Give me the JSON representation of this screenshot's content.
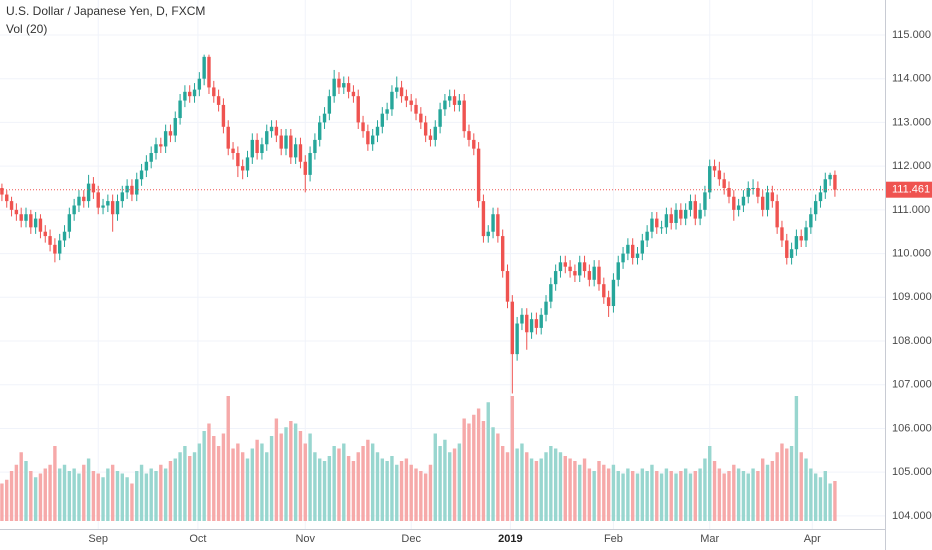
{
  "chart_data": {
    "type": "candlestick",
    "title": "U.S. Dollar / Japanese Yen, D, FXCM",
    "volume_title": "Vol (20)",
    "up_color": "#26a69a",
    "down_color": "#ef5350",
    "volume_up_color": "#98d6cf",
    "volume_down_color": "#f6a9a9",
    "grid": true,
    "ylim": [
      103.7,
      115.8
    ],
    "yticks": [
      {
        "value": 104,
        "label": "104.000"
      },
      {
        "value": 105,
        "label": "105.000"
      },
      {
        "value": 106,
        "label": "106.000"
      },
      {
        "value": 107,
        "label": "107.000"
      },
      {
        "value": 108,
        "label": "108.000"
      },
      {
        "value": 109,
        "label": "109.000"
      },
      {
        "value": 110,
        "label": "110.000"
      },
      {
        "value": 111,
        "label": "111.000"
      },
      {
        "value": 112,
        "label": "112.000"
      },
      {
        "value": 113,
        "label": "113.000"
      },
      {
        "value": 114,
        "label": "114.000"
      },
      {
        "value": 115,
        "label": "115.000"
      }
    ],
    "xlim": [
      -0.4,
      183.4
    ],
    "xticks": [
      {
        "value": 20,
        "label": "Sep"
      },
      {
        "value": 40.7,
        "label": "Oct"
      },
      {
        "value": 63,
        "label": "Nov"
      },
      {
        "value": 85,
        "label": "Dec"
      },
      {
        "value": 105.6,
        "label": "2019"
      },
      {
        "value": 127,
        "label": "Feb"
      },
      {
        "value": 147,
        "label": "Mar"
      },
      {
        "value": 168.3,
        "label": "Apr"
      }
    ],
    "volume_lim": [
      0,
      100
    ],
    "last_price_label": "111.461",
    "candles": [
      [
        111.5,
        111.6,
        111.2,
        111.35
      ],
      [
        111.35,
        111.45,
        111.05,
        111.2
      ],
      [
        111.2,
        111.3,
        110.85,
        111.0
      ],
      [
        111.0,
        111.15,
        110.75,
        110.9
      ],
      [
        110.9,
        111.05,
        110.6,
        110.75
      ],
      [
        110.75,
        111.05,
        110.6,
        110.9
      ],
      [
        110.9,
        111.0,
        110.45,
        110.6
      ],
      [
        110.6,
        110.95,
        110.45,
        110.8
      ],
      [
        110.8,
        110.9,
        110.35,
        110.5
      ],
      [
        110.5,
        110.65,
        110.25,
        110.4
      ],
      [
        110.4,
        110.55,
        110.05,
        110.2
      ],
      [
        110.2,
        110.35,
        109.8,
        110.0
      ],
      [
        110.0,
        110.45,
        109.85,
        110.3
      ],
      [
        110.3,
        110.65,
        110.15,
        110.5
      ],
      [
        110.5,
        111.05,
        110.35,
        110.9
      ],
      [
        110.9,
        111.25,
        110.75,
        111.1
      ],
      [
        111.1,
        111.45,
        110.95,
        111.3
      ],
      [
        111.3,
        111.45,
        111.05,
        111.2
      ],
      [
        111.2,
        111.8,
        111.05,
        111.6
      ],
      [
        111.6,
        111.75,
        111.25,
        111.4
      ],
      [
        111.4,
        111.55,
        110.9,
        111.05
      ],
      [
        111.05,
        111.25,
        110.9,
        111.1
      ],
      [
        111.1,
        111.35,
        110.95,
        111.2
      ],
      [
        111.2,
        111.35,
        110.5,
        110.9
      ],
      [
        110.9,
        111.35,
        110.75,
        111.2
      ],
      [
        111.2,
        111.55,
        111.05,
        111.4
      ],
      [
        111.4,
        111.7,
        111.25,
        111.55
      ],
      [
        111.55,
        111.7,
        111.2,
        111.35
      ],
      [
        111.35,
        111.85,
        111.2,
        111.7
      ],
      [
        111.7,
        112.05,
        111.55,
        111.9
      ],
      [
        111.9,
        112.25,
        111.75,
        112.1
      ],
      [
        112.1,
        112.45,
        111.95,
        112.3
      ],
      [
        112.3,
        112.65,
        112.15,
        112.5
      ],
      [
        112.5,
        112.65,
        112.3,
        112.45
      ],
      [
        112.45,
        112.95,
        112.3,
        112.8
      ],
      [
        112.8,
        112.95,
        112.55,
        112.7
      ],
      [
        112.7,
        113.25,
        112.55,
        113.1
      ],
      [
        113.1,
        113.65,
        112.95,
        113.5
      ],
      [
        113.5,
        113.85,
        113.35,
        113.7
      ],
      [
        113.7,
        113.85,
        113.45,
        113.6
      ],
      [
        113.6,
        113.9,
        113.45,
        113.75
      ],
      [
        113.75,
        114.15,
        113.6,
        114.0
      ],
      [
        114.0,
        114.55,
        113.85,
        114.5
      ],
      [
        114.5,
        114.55,
        113.65,
        113.8
      ],
      [
        113.8,
        113.95,
        113.45,
        113.6
      ],
      [
        113.6,
        113.75,
        113.25,
        113.4
      ],
      [
        113.4,
        113.55,
        112.75,
        112.9
      ],
      [
        112.9,
        113.05,
        112.25,
        112.4
      ],
      [
        112.4,
        112.55,
        112.15,
        112.3
      ],
      [
        112.3,
        112.45,
        111.75,
        112.0
      ],
      [
        112.0,
        112.15,
        111.7,
        111.9
      ],
      [
        111.9,
        112.35,
        111.75,
        112.2
      ],
      [
        112.2,
        112.75,
        112.05,
        112.6
      ],
      [
        112.6,
        112.75,
        112.15,
        112.3
      ],
      [
        112.3,
        112.65,
        112.15,
        112.5
      ],
      [
        112.5,
        112.95,
        112.35,
        112.8
      ],
      [
        112.8,
        113.05,
        112.65,
        112.9
      ],
      [
        112.9,
        113.05,
        112.55,
        112.7
      ],
      [
        112.7,
        112.85,
        112.25,
        112.4
      ],
      [
        112.4,
        112.85,
        112.25,
        112.7
      ],
      [
        112.7,
        112.85,
        112.05,
        112.2
      ],
      [
        112.2,
        112.65,
        112.05,
        112.5
      ],
      [
        112.5,
        112.65,
        111.95,
        112.1
      ],
      [
        112.1,
        112.25,
        111.4,
        111.8
      ],
      [
        111.8,
        112.45,
        111.65,
        112.3
      ],
      [
        112.3,
        112.75,
        112.15,
        112.6
      ],
      [
        112.6,
        113.15,
        112.45,
        113.0
      ],
      [
        113.0,
        113.35,
        112.85,
        113.2
      ],
      [
        113.2,
        113.75,
        113.05,
        113.6
      ],
      [
        113.6,
        114.2,
        113.45,
        114.0
      ],
      [
        114.0,
        114.15,
        113.65,
        113.8
      ],
      [
        113.8,
        114.05,
        113.65,
        113.9
      ],
      [
        113.9,
        114.05,
        113.55,
        113.7
      ],
      [
        113.7,
        113.85,
        113.45,
        113.6
      ],
      [
        113.6,
        113.75,
        112.85,
        113.0
      ],
      [
        113.0,
        113.15,
        112.65,
        112.8
      ],
      [
        112.8,
        112.95,
        112.35,
        112.5
      ],
      [
        112.5,
        112.85,
        112.35,
        112.7
      ],
      [
        112.7,
        113.05,
        112.55,
        112.9
      ],
      [
        112.9,
        113.35,
        112.75,
        113.2
      ],
      [
        113.2,
        113.45,
        113.05,
        113.3
      ],
      [
        113.3,
        113.85,
        113.15,
        113.7
      ],
      [
        113.7,
        114.05,
        113.55,
        113.8
      ],
      [
        113.8,
        113.95,
        113.45,
        113.6
      ],
      [
        113.6,
        113.75,
        113.35,
        113.5
      ],
      [
        113.5,
        113.65,
        113.25,
        113.4
      ],
      [
        113.4,
        113.55,
        113.05,
        113.2
      ],
      [
        113.2,
        113.35,
        112.85,
        113.0
      ],
      [
        113.0,
        113.15,
        112.55,
        112.7
      ],
      [
        112.7,
        112.85,
        112.45,
        112.6
      ],
      [
        112.6,
        113.05,
        112.45,
        112.9
      ],
      [
        112.9,
        113.45,
        112.75,
        113.3
      ],
      [
        113.3,
        113.65,
        113.15,
        113.5
      ],
      [
        113.5,
        113.75,
        113.35,
        113.6
      ],
      [
        113.6,
        113.75,
        113.25,
        113.4
      ],
      [
        113.4,
        113.65,
        113.25,
        113.5
      ],
      [
        113.5,
        113.65,
        112.65,
        112.8
      ],
      [
        112.8,
        112.95,
        112.45,
        112.6
      ],
      [
        112.6,
        112.75,
        112.25,
        112.4
      ],
      [
        112.4,
        112.55,
        111.05,
        111.2
      ],
      [
        111.2,
        111.35,
        110.25,
        110.4
      ],
      [
        110.4,
        110.65,
        110.25,
        110.5
      ],
      [
        110.5,
        111.05,
        110.35,
        110.9
      ],
      [
        110.9,
        111.05,
        110.25,
        110.4
      ],
      [
        110.4,
        110.55,
        109.45,
        109.6
      ],
      [
        109.6,
        109.75,
        108.75,
        108.9
      ],
      [
        108.9,
        109.05,
        106.8,
        107.7
      ],
      [
        107.7,
        108.55,
        107.55,
        108.4
      ],
      [
        108.4,
        108.75,
        108.25,
        108.6
      ],
      [
        108.6,
        108.75,
        107.8,
        108.2
      ],
      [
        108.2,
        108.65,
        108.05,
        108.5
      ],
      [
        108.5,
        108.65,
        108.15,
        108.3
      ],
      [
        108.3,
        108.75,
        108.15,
        108.6
      ],
      [
        108.6,
        109.05,
        108.45,
        108.9
      ],
      [
        108.9,
        109.45,
        108.75,
        109.3
      ],
      [
        109.3,
        109.75,
        109.15,
        109.6
      ],
      [
        109.6,
        109.95,
        109.45,
        109.8
      ],
      [
        109.8,
        109.95,
        109.55,
        109.7
      ],
      [
        109.7,
        109.85,
        109.45,
        109.6
      ],
      [
        109.6,
        109.75,
        109.35,
        109.5
      ],
      [
        109.5,
        109.95,
        109.35,
        109.8
      ],
      [
        109.8,
        109.95,
        109.45,
        109.6
      ],
      [
        109.6,
        109.75,
        109.25,
        109.4
      ],
      [
        109.4,
        109.85,
        109.25,
        109.7
      ],
      [
        109.7,
        109.85,
        109.15,
        109.3
      ],
      [
        109.3,
        109.45,
        108.85,
        109.0
      ],
      [
        109.0,
        109.15,
        108.55,
        108.8
      ],
      [
        108.8,
        109.55,
        108.65,
        109.4
      ],
      [
        109.4,
        109.95,
        109.25,
        109.8
      ],
      [
        109.8,
        110.15,
        109.65,
        110.0
      ],
      [
        110.0,
        110.35,
        109.85,
        110.2
      ],
      [
        110.2,
        110.35,
        109.75,
        109.9
      ],
      [
        109.9,
        110.15,
        109.75,
        110.0
      ],
      [
        110.0,
        110.45,
        109.85,
        110.3
      ],
      [
        110.3,
        110.65,
        110.15,
        110.5
      ],
      [
        110.5,
        110.95,
        110.35,
        110.8
      ],
      [
        110.8,
        110.95,
        110.45,
        110.6
      ],
      [
        110.6,
        110.75,
        110.45,
        110.6
      ],
      [
        110.6,
        111.05,
        110.45,
        110.9
      ],
      [
        110.9,
        111.05,
        110.55,
        110.7
      ],
      [
        110.7,
        111.15,
        110.55,
        111.0
      ],
      [
        111.0,
        111.15,
        110.65,
        110.8
      ],
      [
        110.8,
        111.15,
        110.65,
        111.0
      ],
      [
        111.0,
        111.35,
        110.85,
        111.2
      ],
      [
        111.2,
        111.35,
        110.65,
        110.8
      ],
      [
        110.8,
        111.15,
        110.65,
        111.0
      ],
      [
        111.0,
        111.55,
        110.85,
        111.4
      ],
      [
        111.4,
        112.15,
        111.25,
        112.0
      ],
      [
        112.0,
        112.15,
        111.75,
        111.9
      ],
      [
        111.9,
        112.1,
        111.55,
        111.7
      ],
      [
        111.7,
        111.85,
        111.35,
        111.5
      ],
      [
        111.5,
        111.65,
        111.15,
        111.3
      ],
      [
        111.3,
        111.45,
        110.75,
        111.0
      ],
      [
        111.0,
        111.25,
        110.85,
        111.1
      ],
      [
        111.1,
        111.45,
        110.95,
        111.3
      ],
      [
        111.3,
        111.65,
        111.15,
        111.5
      ],
      [
        111.5,
        111.7,
        111.35,
        111.5
      ],
      [
        111.5,
        111.65,
        111.15,
        111.3
      ],
      [
        111.3,
        111.45,
        110.85,
        111.0
      ],
      [
        111.0,
        111.55,
        110.85,
        111.4
      ],
      [
        111.4,
        111.55,
        111.05,
        111.2
      ],
      [
        111.2,
        111.35,
        110.45,
        110.6
      ],
      [
        110.6,
        110.75,
        110.15,
        110.3
      ],
      [
        110.3,
        110.45,
        109.75,
        109.9
      ],
      [
        109.9,
        110.25,
        109.75,
        110.1
      ],
      [
        110.1,
        110.55,
        109.95,
        110.4
      ],
      [
        110.4,
        110.55,
        110.15,
        110.3
      ],
      [
        110.3,
        110.75,
        110.15,
        110.6
      ],
      [
        110.6,
        111.05,
        110.45,
        110.9
      ],
      [
        110.9,
        111.35,
        110.75,
        111.2
      ],
      [
        111.2,
        111.55,
        111.05,
        111.4
      ],
      [
        111.4,
        111.85,
        111.25,
        111.7
      ],
      [
        111.7,
        111.85,
        111.55,
        111.8
      ],
      [
        111.8,
        111.9,
        111.3,
        111.461
      ]
    ],
    "volume": [
      30,
      33,
      40,
      45,
      55,
      48,
      40,
      35,
      38,
      42,
      45,
      60,
      42,
      45,
      40,
      42,
      38,
      45,
      50,
      40,
      38,
      35,
      42,
      45,
      40,
      38,
      35,
      30,
      40,
      45,
      38,
      42,
      40,
      45,
      42,
      48,
      50,
      55,
      60,
      52,
      55,
      62,
      72,
      78,
      68,
      60,
      70,
      100,
      58,
      62,
      55,
      50,
      58,
      65,
      62,
      55,
      68,
      82,
      70,
      75,
      80,
      78,
      72,
      62,
      70,
      55,
      50,
      48,
      52,
      60,
      58,
      62,
      52,
      48,
      55,
      60,
      65,
      62,
      55,
      50,
      48,
      52,
      45,
      48,
      50,
      45,
      42,
      40,
      38,
      45,
      70,
      60,
      65,
      55,
      58,
      62,
      82,
      78,
      85,
      90,
      80,
      95,
      75,
      70,
      60,
      55,
      100,
      58,
      62,
      55,
      50,
      48,
      50,
      55,
      60,
      58,
      55,
      52,
      50,
      48,
      45,
      50,
      42,
      40,
      48,
      45,
      42,
      45,
      40,
      38,
      42,
      40,
      38,
      42,
      40,
      45,
      40,
      38,
      42,
      40,
      38,
      40,
      42,
      38,
      40,
      42,
      50,
      60,
      48,
      42,
      38,
      40,
      45,
      42,
      40,
      38,
      42,
      40,
      50,
      45,
      48,
      55,
      62,
      58,
      60,
      100,
      55,
      50,
      42,
      38,
      35,
      40,
      30,
      32
    ]
  }
}
